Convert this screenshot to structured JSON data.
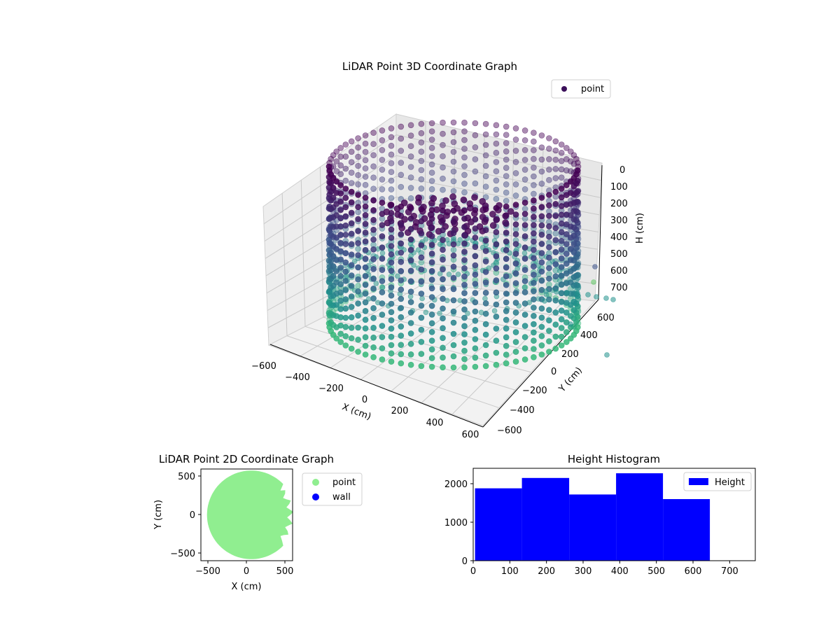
{
  "figure": {
    "background": "#ffffff"
  },
  "chart_data": [
    {
      "type": "scatter",
      "projection": "3d",
      "title": "LiDAR Point 3D Coordinate Graph",
      "xlabel": "X (cm)",
      "ylabel": "Y (cm)",
      "zlabel": "H (cm)",
      "xlim": [
        -600,
        600
      ],
      "ylim": [
        -600,
        600
      ],
      "zlim": [
        0,
        750
      ],
      "z_inverted": true,
      "x_ticks": [
        "−600",
        "−400",
        "−200",
        "0",
        "200",
        "400",
        "600"
      ],
      "y_ticks": [
        "−600",
        "−400",
        "−200",
        "0",
        "200",
        "400",
        "600"
      ],
      "z_ticks": [
        "0",
        "100",
        "200",
        "300",
        "400",
        "500",
        "600",
        "700"
      ],
      "grid": true,
      "legend": {
        "position": "upper-right",
        "entries": [
          {
            "label": "point",
            "color": "#3b0f5a"
          }
        ]
      },
      "colormap": "viridis",
      "colors": {
        "near": "#440154",
        "mid": "#3b528b",
        "far": "#21918c",
        "low": "#5ec962"
      },
      "series": [
        {
          "name": "point",
          "shape": "cylindrical wall",
          "radius_cm": 580,
          "height_cm": [
            0,
            640
          ],
          "spokes": 72,
          "outliers_x": [
            600,
            640,
            700
          ]
        }
      ]
    },
    {
      "type": "scatter",
      "title": "LiDAR Point 2D Coordinate Graph",
      "xlabel": "X (cm)",
      "ylabel": "Y (cm)",
      "xlim": [
        -600,
        600
      ],
      "ylim": [
        -600,
        600
      ],
      "x_ticks": [
        "−500",
        "0",
        "500"
      ],
      "y_ticks": [
        "−500",
        "0",
        "500"
      ],
      "legend": {
        "position": "outside-right",
        "entries": [
          {
            "label": "point",
            "color": "#90ee90"
          },
          {
            "label": "wall",
            "color": "#0000ff"
          }
        ]
      },
      "series": [
        {
          "name": "point",
          "color": "#90ee90",
          "shape": "filled disk",
          "radius_cm": 580
        }
      ]
    },
    {
      "type": "bar",
      "title": "Height Histogram",
      "xlim": [
        0,
        770
      ],
      "ylim": [
        0,
        2400
      ],
      "x_ticks": [
        "0",
        "100",
        "200",
        "300",
        "400",
        "500",
        "600",
        "700"
      ],
      "y_ticks": [
        "0",
        "1000",
        "2000"
      ],
      "legend": {
        "position": "upper-right",
        "entries": [
          {
            "label": "Height",
            "color": "#0000ff"
          }
        ]
      },
      "bins": [
        {
          "x0": 5,
          "x1": 133,
          "value": 1880
        },
        {
          "x0": 133,
          "x1": 262,
          "value": 2150
        },
        {
          "x0": 262,
          "x1": 390,
          "value": 1720
        },
        {
          "x0": 390,
          "x1": 518,
          "value": 2270
        },
        {
          "x0": 518,
          "x1": 646,
          "value": 1600
        }
      ],
      "color": "#0000ff"
    }
  ]
}
